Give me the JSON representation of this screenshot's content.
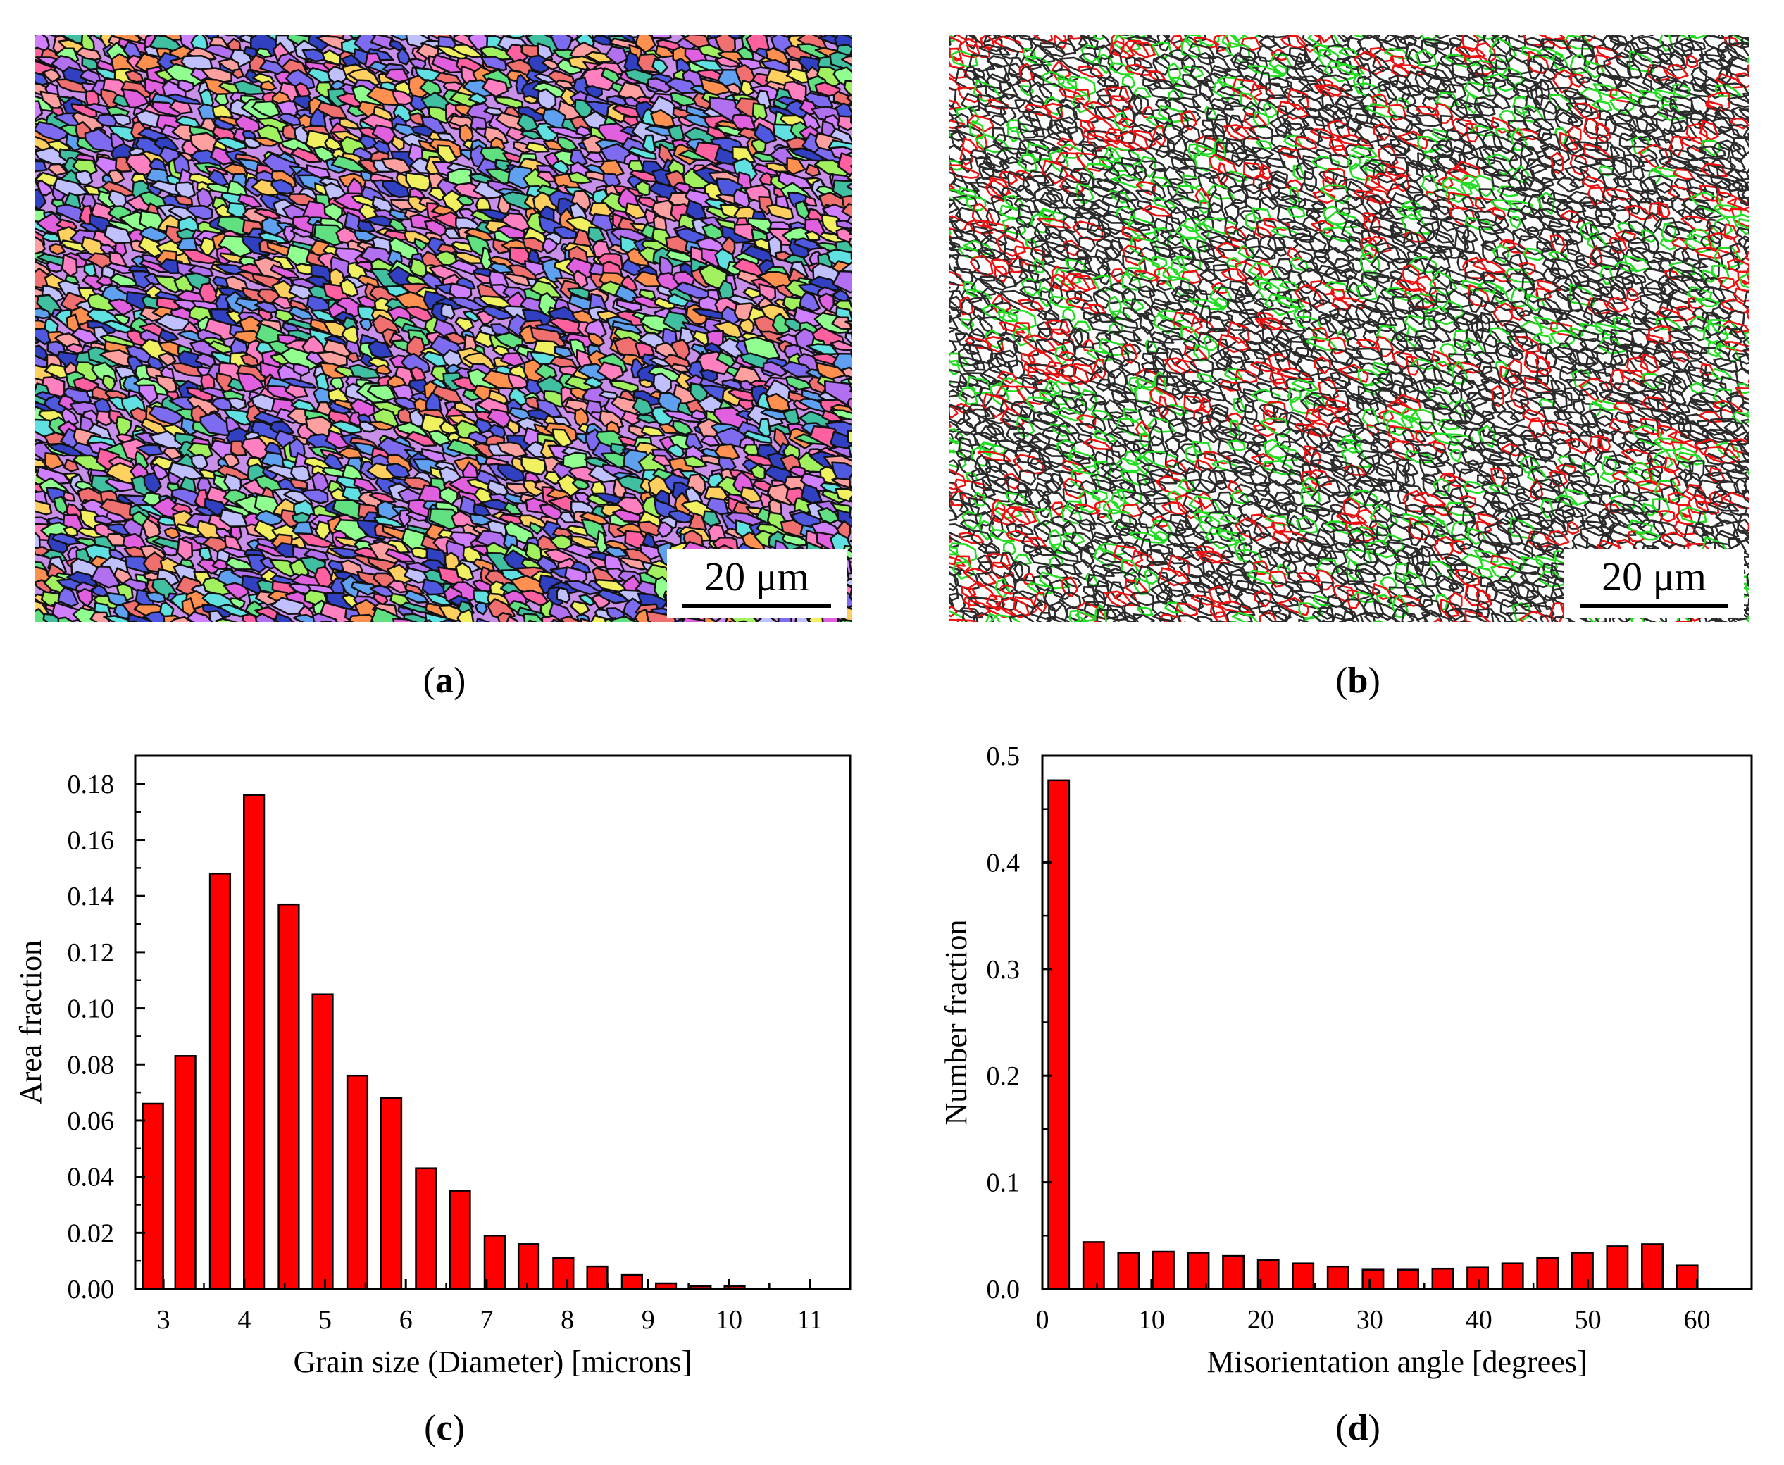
{
  "panels": {
    "a": {
      "caption_open": "(",
      "caption_letter": "a",
      "caption_close": ")",
      "scale_label": "20 μm"
    },
    "b": {
      "caption_open": "(",
      "caption_letter": "b",
      "caption_close": ")",
      "scale_label": "20 μm"
    },
    "c": {
      "caption_open": "(",
      "caption_letter": "c",
      "caption_close": ")"
    },
    "d": {
      "caption_open": "(",
      "caption_letter": "d",
      "caption_close": ")"
    }
  },
  "colors": {
    "bar_fill": "#ff0000",
    "bar_stroke": "#000000",
    "boundary_black": "#2b2b2b",
    "boundary_red": "#ee1111",
    "boundary_green": "#22dd22"
  },
  "chart_data": [
    {
      "id": "c",
      "type": "bar",
      "title": "",
      "xlabel": "Grain size (Diameter) [microns]",
      "ylabel": "Area fraction",
      "xlim": [
        2.65,
        11.5
      ],
      "ylim": [
        0,
        0.19
      ],
      "xticks": [
        3,
        4,
        5,
        6,
        7,
        8,
        9,
        10,
        11
      ],
      "yticks": [
        0.0,
        0.02,
        0.04,
        0.06,
        0.08,
        0.1,
        0.12,
        0.14,
        0.16,
        0.18
      ],
      "xtick_labels": [
        "3",
        "4",
        "5",
        "6",
        "7",
        "8",
        "9",
        "10",
        "11"
      ],
      "ytick_labels": [
        "0.00",
        "0.02",
        "0.04",
        "0.06",
        "0.08",
        "0.10",
        "0.12",
        "0.14",
        "0.16",
        "0.18"
      ],
      "bar_width": 0.25,
      "x": [
        2.87,
        3.27,
        3.7,
        4.12,
        4.55,
        4.97,
        5.4,
        5.82,
        6.25,
        6.67,
        7.1,
        7.52,
        7.95,
        8.37,
        8.8,
        9.22,
        9.65,
        10.07
      ],
      "values": [
        0.066,
        0.083,
        0.148,
        0.176,
        0.137,
        0.105,
        0.076,
        0.068,
        0.043,
        0.035,
        0.019,
        0.016,
        0.011,
        0.008,
        0.005,
        0.002,
        0.001,
        0.001
      ]
    },
    {
      "id": "d",
      "type": "bar",
      "title": "",
      "xlabel": "Misorientation angle [degrees]",
      "ylabel": "Number fraction",
      "xlim": [
        0,
        65
      ],
      "ylim": [
        0,
        0.5
      ],
      "xticks": [
        0,
        10,
        20,
        30,
        40,
        50,
        60
      ],
      "yticks": [
        0.0,
        0.1,
        0.2,
        0.3,
        0.4,
        0.5
      ],
      "xtick_labels": [
        "0",
        "10",
        "20",
        "30",
        "40",
        "50",
        "60"
      ],
      "ytick_labels": [
        "0.0",
        "0.1",
        "0.2",
        "0.3",
        "0.4",
        "0.5"
      ],
      "bar_width": 1.9,
      "x": [
        1.5,
        4.7,
        7.9,
        11.1,
        14.3,
        17.5,
        20.7,
        23.9,
        27.1,
        30.3,
        33.5,
        36.7,
        39.9,
        43.1,
        46.3,
        49.5,
        52.7,
        55.9,
        59.1
      ],
      "values": [
        0.477,
        0.044,
        0.034,
        0.035,
        0.034,
        0.031,
        0.027,
        0.024,
        0.021,
        0.018,
        0.018,
        0.019,
        0.02,
        0.024,
        0.029,
        0.034,
        0.04,
        0.042,
        0.022
      ]
    }
  ]
}
